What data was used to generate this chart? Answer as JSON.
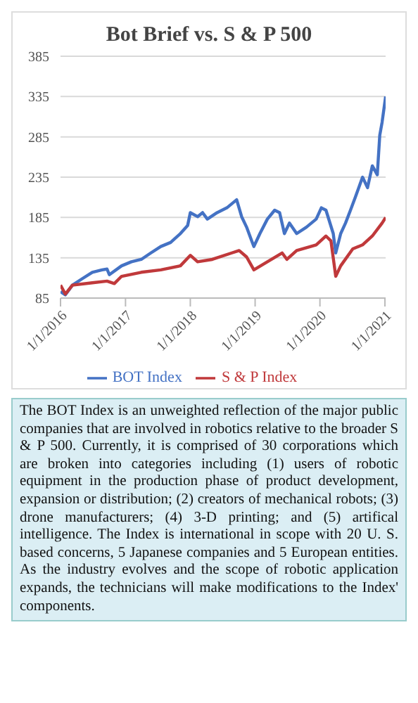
{
  "chart_data": {
    "type": "line",
    "title": "Bot Brief vs. S & P 500",
    "annotations": [
      "The BOT Index is an unweighted reflection of the major public companies that are involved in robotics relative to the broader S & P 500. Currently, it is comprised of 30 corporations which are broken into categories including (1) users of robotic equipment in the production phase of product development, expansion or distribution; (2) creators of mechanical robots; (3) drone manufacturers; (4) 3-D printing; and (5) artifical intelligence. The Index is international in scope with 20 U. S. based concerns, 5 Japanese companies and 5 European entities. As the industry evolves and the scope of robotic application expands, the technicians will make modifications to the Index' components."
    ],
    "xlim": [
      "2016-01-01",
      "2021-01-05"
    ],
    "xticks": [
      {
        "value": "2016-01-01",
        "label": "1/1/2016"
      },
      {
        "value": "2017-01-01",
        "label": "1/1/2017"
      },
      {
        "value": "2018-01-01",
        "label": "1/1/2018"
      },
      {
        "value": "2019-01-01",
        "label": "1/1/2019"
      },
      {
        "value": "2020-01-01",
        "label": "1/1/2020"
      },
      {
        "value": "2021-01-01",
        "label": "1/1/2021"
      }
    ],
    "ylim": [
      85,
      385
    ],
    "yticks": [
      85,
      135,
      185,
      235,
      285,
      335,
      385
    ],
    "grid": "y",
    "legend": "bottom",
    "marker": "none",
    "line_style": "solid",
    "series": [
      {
        "name": "BOT Index",
        "color": "#4472c4",
        "x": [
          "2016-01-01",
          "2016-01-28",
          "2016-03-08",
          "2016-05-02",
          "2016-06-28",
          "2016-08-22",
          "2016-09-19",
          "2016-10-02",
          "2016-12-10",
          "2017-02-03",
          "2017-03-31",
          "2017-05-24",
          "2017-07-19",
          "2017-09-12",
          "2017-11-06",
          "2017-12-17",
          "2018-01-01",
          "2018-02-11",
          "2018-03-11",
          "2018-04-07",
          "2018-06-01",
          "2018-07-26",
          "2018-09-19",
          "2018-10-17",
          "2018-11-14",
          "2018-12-11",
          "2018-12-25",
          "2019-01-28",
          "2019-03-11",
          "2019-04-21",
          "2019-05-19",
          "2019-06-15",
          "2019-07-13",
          "2019-08-23",
          "2019-10-17",
          "2019-12-11",
          "2020-01-09",
          "2020-02-04",
          "2020-03-16",
          "2020-03-30",
          "2020-04-27",
          "2020-05-24",
          "2020-06-21",
          "2020-07-18",
          "2020-08-28",
          "2020-09-25",
          "2020-10-22",
          "2020-11-19",
          "2020-12-03",
          "2020-12-16",
          "2021-01-05"
        ],
        "values": [
          93,
          89,
          101,
          109,
          117,
          120,
          121,
          114,
          125,
          130,
          133,
          141,
          149,
          154,
          165,
          175,
          191,
          186,
          191,
          183,
          191,
          197,
          207,
          186,
          173,
          157,
          149,
          165,
          183,
          194,
          191,
          165,
          178,
          165,
          173,
          183,
          197,
          194,
          165,
          141,
          165,
          178,
          194,
          210,
          235,
          222,
          249,
          238,
          287,
          303,
          335
        ]
      },
      {
        "name": "S & P Index",
        "color": "#c0393b",
        "x": [
          "2016-01-01",
          "2016-01-28",
          "2016-03-08",
          "2016-06-28",
          "2016-09-19",
          "2016-10-30",
          "2016-12-10",
          "2017-03-31",
          "2017-07-19",
          "2017-11-06",
          "2018-01-01",
          "2018-02-11",
          "2018-05-05",
          "2018-08-23",
          "2018-10-03",
          "2018-11-14",
          "2018-12-25",
          "2019-03-11",
          "2019-06-02",
          "2019-06-29",
          "2019-08-23",
          "2019-12-11",
          "2020-02-04",
          "2020-03-03",
          "2020-03-30",
          "2020-04-27",
          "2020-07-04",
          "2020-08-28",
          "2020-10-22",
          "2020-12-16",
          "2021-01-05"
        ],
        "values": [
          101,
          90,
          101,
          104,
          106,
          103,
          112,
          117,
          120,
          125,
          138,
          130,
          133,
          141,
          144,
          136,
          120,
          130,
          141,
          133,
          144,
          151,
          162,
          156,
          112,
          125,
          146,
          151,
          162,
          178,
          185
        ]
      }
    ]
  }
}
